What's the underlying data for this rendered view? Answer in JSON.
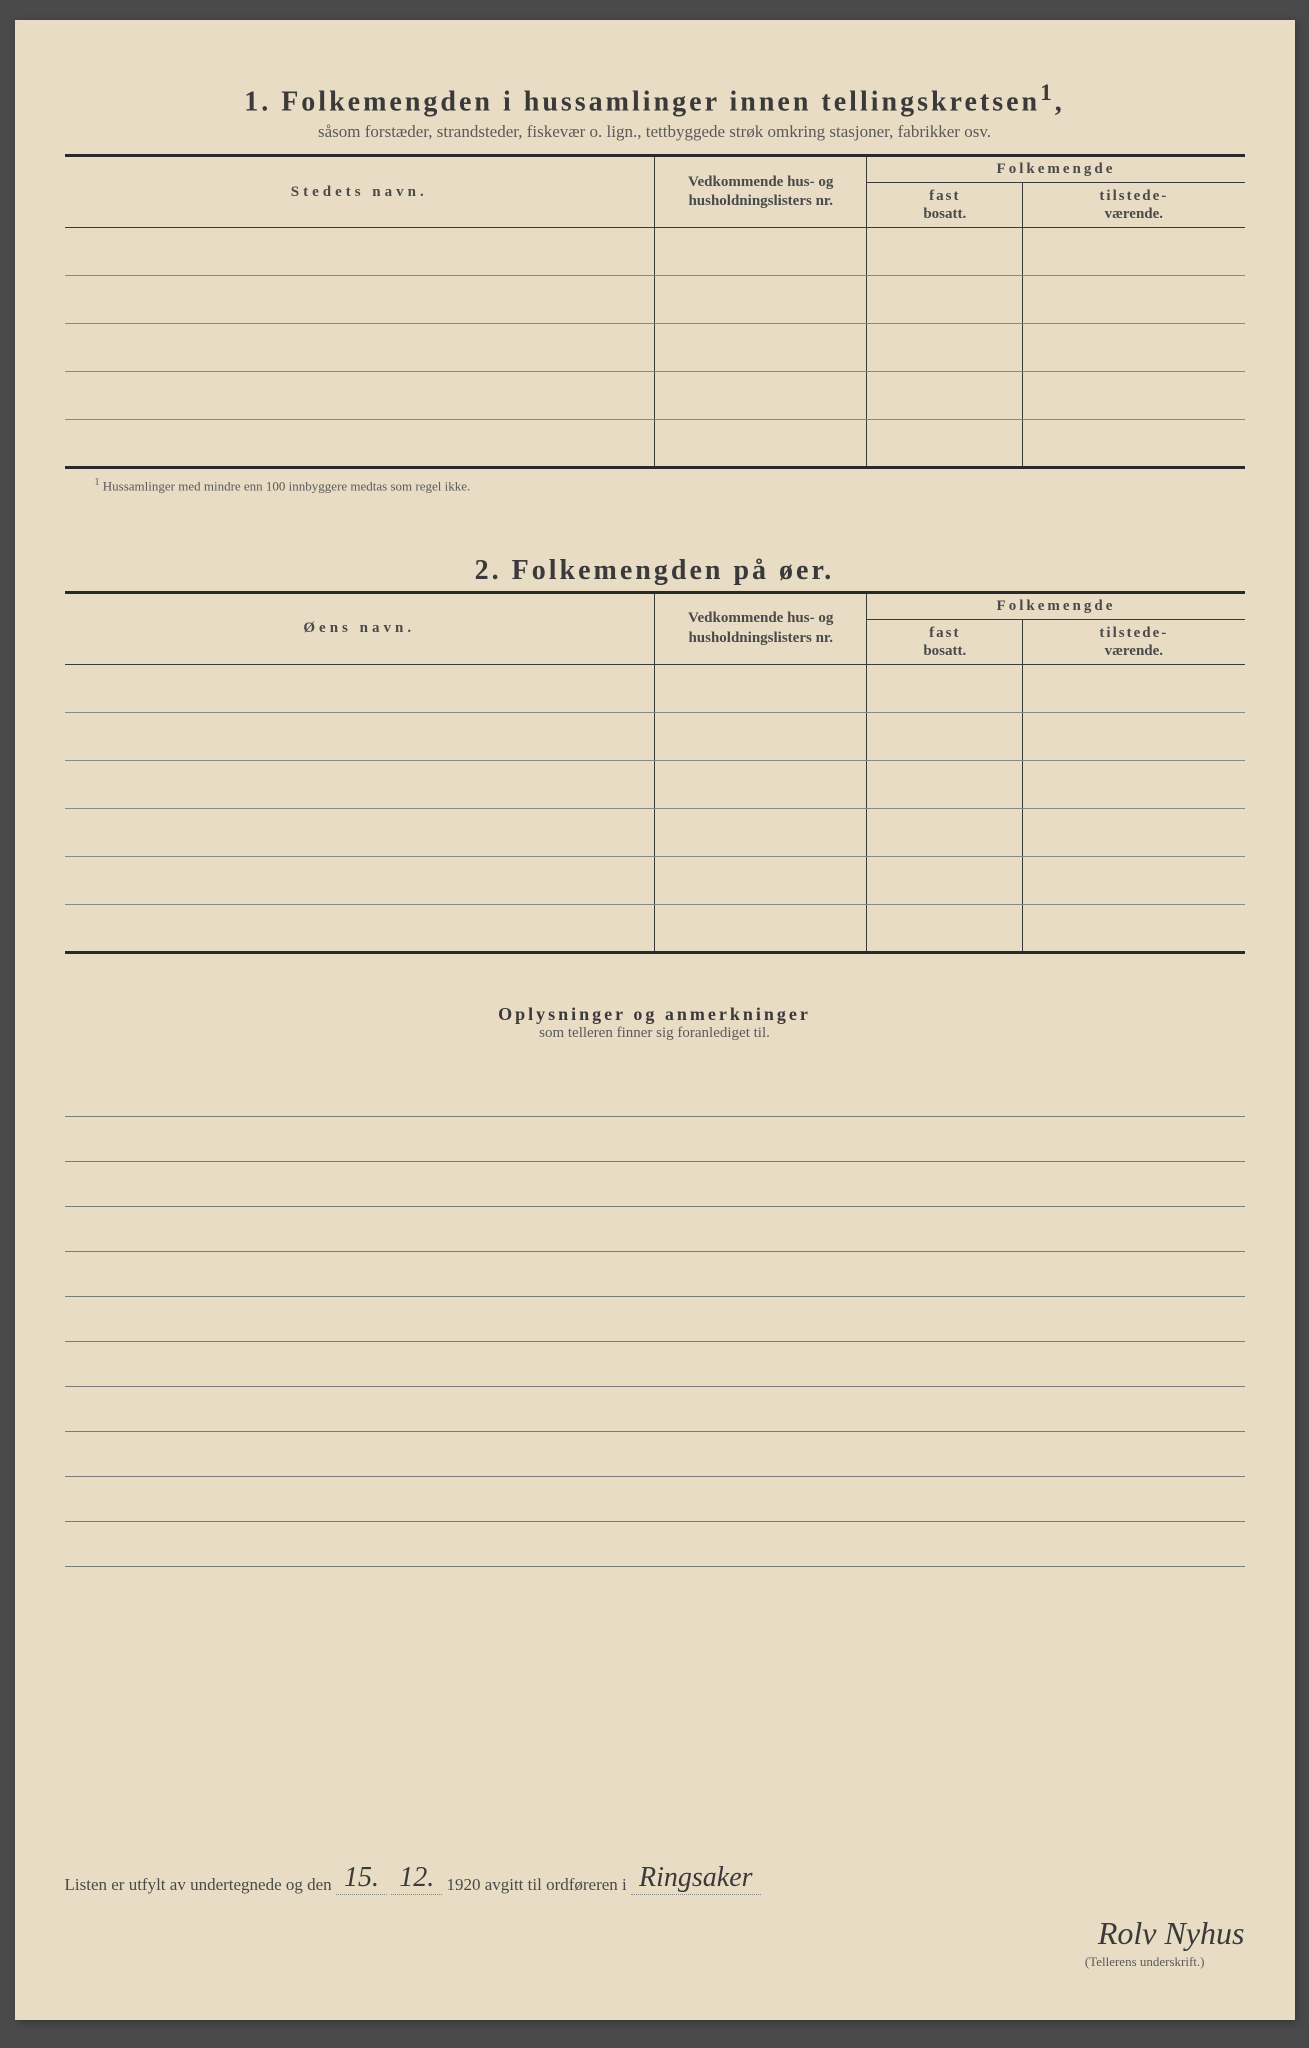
{
  "section1": {
    "number": "1.",
    "title": "Folkemengden i hussamlinger innen tellingskretsen",
    "superscript": "1",
    "subtitle": "såsom forstæder, strandsteder, fiskevær o. lign., tettbyggede strøk omkring stasjoner, fabrikker osv.",
    "col_name": "Stedets navn.",
    "col_lists": "Vedkommende hus- og husholdningslisters nr.",
    "col_folk": "Folkemengde",
    "col_fast_bold": "fast",
    "col_fast_sub": "bosatt.",
    "col_tilstede_bold": "tilstede-",
    "col_tilstede_sub": "værende.",
    "footnote_num": "1",
    "footnote": "Hussamlinger med mindre enn 100 innbyggere medtas som regel ikke.",
    "row_count": 5
  },
  "section2": {
    "number": "2.",
    "title": "Folkemengden på øer.",
    "col_name": "Øens navn.",
    "col_lists": "Vedkommende hus- og husholdningslisters nr.",
    "col_folk": "Folkemengde",
    "col_fast_bold": "fast",
    "col_fast_sub": "bosatt.",
    "col_tilstede_bold": "tilstede-",
    "col_tilstede_sub": "værende.",
    "row_count": 6
  },
  "remarks": {
    "title": "Oplysninger og anmerkninger",
    "subtitle": "som telleren finner sig foranlediget til.",
    "line_count": 11
  },
  "footer": {
    "prefix": "Listen er utfylt av undertegnede og den",
    "day": "15.",
    "month": "12.",
    "year": "1920",
    "middle": "avgitt til ordføreren i",
    "place": "Ringsaker",
    "signature": "Rolv Nyhus",
    "signature_label": "(Tellerens underskrift.)"
  },
  "colors": {
    "paper": "#e8dcc4",
    "ink": "#3a3a3a",
    "faded": "#5a5a5a",
    "border": "#2a2a2a"
  }
}
